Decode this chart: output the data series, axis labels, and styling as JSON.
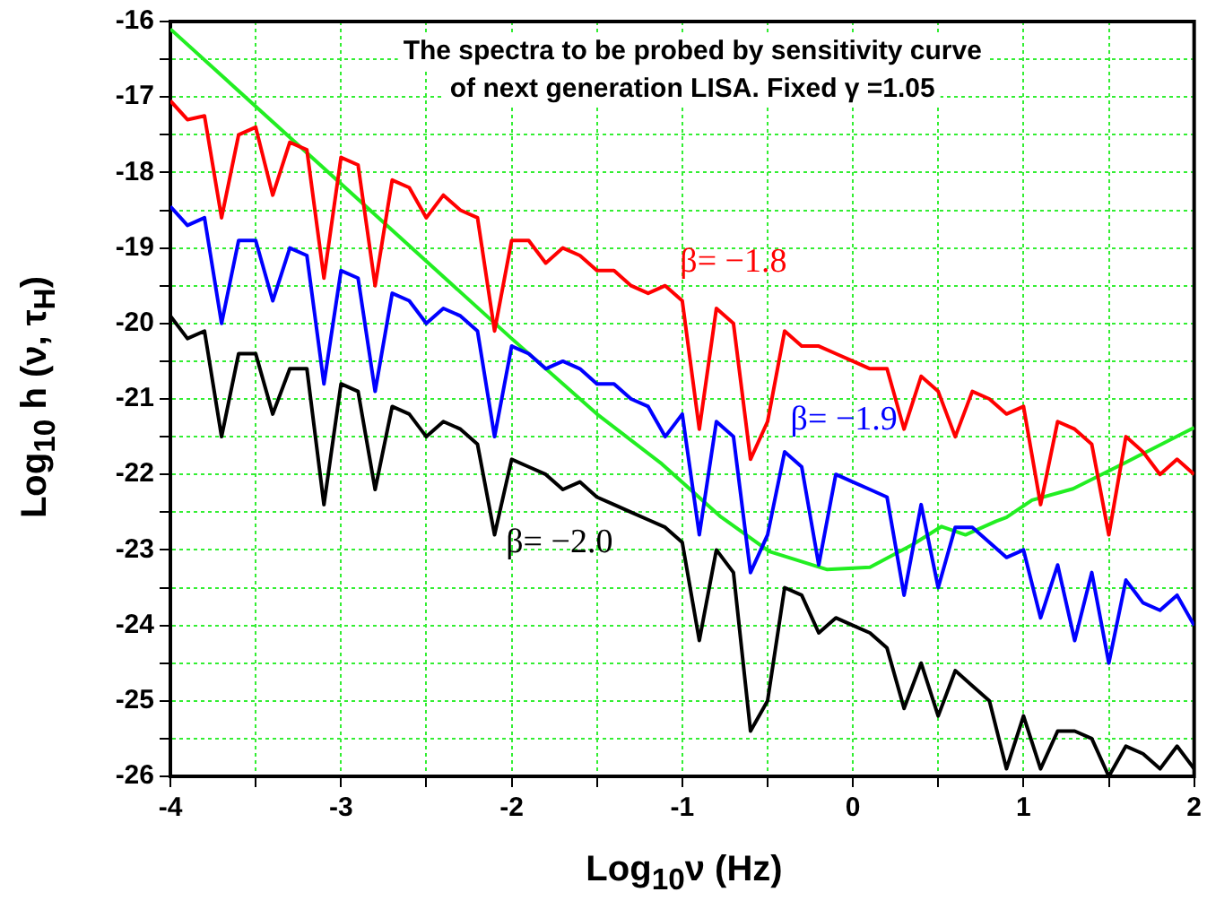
{
  "chart_data": {
    "type": "line",
    "title": "The spectra to be probed by sensitivity curve\nof next generation LISA. Fixed γ =1.05",
    "xlabel": "Log$_{10}$ν (Hz)",
    "ylabel": "Log$_{10}$ h (ν, τ$_{H}$)",
    "x": [
      -4.0,
      -3.9,
      -3.8,
      -3.7,
      -3.6,
      -3.5,
      -3.4,
      -3.3,
      -3.2,
      -3.1,
      -3.0,
      -2.9,
      -2.8,
      -2.7,
      -2.6,
      -2.5,
      -2.4,
      -2.3,
      -2.2,
      -2.1,
      -2.0,
      -1.9,
      -1.8,
      -1.7,
      -1.6,
      -1.5,
      -1.4,
      -1.3,
      -1.2,
      -1.1,
      -1.0,
      -0.9,
      -0.8,
      -0.7,
      -0.6,
      -0.5,
      -0.4,
      -0.3,
      -0.2,
      -0.1,
      0.0,
      0.1,
      0.2,
      0.3,
      0.4,
      0.5,
      0.6,
      0.7,
      0.8,
      0.9,
      1.0,
      1.1,
      1.2,
      1.3,
      1.4,
      1.5,
      1.6,
      1.7,
      1.8,
      1.9,
      2.0
    ],
    "series": [
      {
        "name": "β= −1.8",
        "color": "#ff0000",
        "values": [
          -17.05,
          -17.3,
          -17.25,
          -18.6,
          -17.5,
          -17.4,
          -18.3,
          -17.6,
          -17.7,
          -19.4,
          -17.8,
          -17.9,
          -19.5,
          -18.1,
          -18.2,
          -18.6,
          -18.3,
          -18.5,
          -18.6,
          -20.1,
          -18.9,
          -18.9,
          -19.2,
          -19.0,
          -19.1,
          -19.3,
          -19.3,
          -19.5,
          -19.6,
          -19.5,
          -19.7,
          -21.4,
          -19.8,
          -20.0,
          -21.8,
          -21.3,
          -20.1,
          -20.3,
          -20.3,
          -20.4,
          -20.5,
          -20.6,
          -20.6,
          -21.4,
          -20.7,
          -20.9,
          -21.5,
          -20.9,
          -21.0,
          -21.2,
          -21.1,
          -22.4,
          -21.3,
          -21.4,
          -21.6,
          -22.8,
          -21.5,
          -21.7,
          -22.0,
          -21.8,
          -22.0
        ]
      },
      {
        "name": "β= −1.9",
        "color": "#0000ff",
        "values": [
          -18.45,
          -18.7,
          -18.6,
          -20.0,
          -18.9,
          -18.9,
          -19.7,
          -19.0,
          -19.1,
          -20.8,
          -19.3,
          -19.4,
          -20.9,
          -19.6,
          -19.7,
          -20.0,
          -19.8,
          -19.9,
          -20.1,
          -21.5,
          -20.3,
          -20.4,
          -20.6,
          -20.5,
          -20.6,
          -20.8,
          -20.8,
          -21.0,
          -21.1,
          -21.5,
          -21.2,
          -22.8,
          -21.3,
          -21.5,
          -23.3,
          -22.8,
          -21.7,
          -21.9,
          -23.2,
          -22.0,
          -22.1,
          -22.2,
          -22.3,
          -23.6,
          -22.4,
          -23.5,
          -22.7,
          -22.7,
          -22.9,
          -23.1,
          -23.0,
          -23.9,
          -23.2,
          -24.2,
          -23.3,
          -24.5,
          -23.4,
          -23.7,
          -23.8,
          -23.6,
          -24.0
        ]
      },
      {
        "name": "β= −2.0",
        "color": "#000000",
        "values": [
          -19.9,
          -20.2,
          -20.1,
          -21.5,
          -20.4,
          -20.4,
          -21.2,
          -20.6,
          -20.6,
          -22.4,
          -20.8,
          -20.9,
          -22.2,
          -21.1,
          -21.2,
          -21.5,
          -21.3,
          -21.4,
          -21.6,
          -22.8,
          -21.8,
          -21.9,
          -22.0,
          -22.2,
          -22.1,
          -22.3,
          -22.4,
          -22.5,
          -22.6,
          -22.7,
          -22.9,
          -24.2,
          -23.0,
          -23.3,
          -25.4,
          -25.0,
          -23.5,
          -23.6,
          -24.1,
          -23.9,
          -24.0,
          -24.1,
          -24.3,
          -25.1,
          -24.5,
          -25.2,
          -24.6,
          -24.8,
          -25.0,
          -25.9,
          -25.2,
          -25.9,
          -25.4,
          -25.4,
          -25.5,
          -26.0,
          -25.6,
          -25.7,
          -25.9,
          -25.6,
          -25.9
        ]
      },
      {
        "color": "#22ee22",
        "x": [
          -4.0,
          -3.0,
          -2.0,
          -1.5,
          -1.12,
          -0.78,
          -0.49,
          -0.15,
          0.1,
          0.35,
          0.52,
          0.66,
          0.84,
          0.9,
          1.05,
          1.29,
          1.6,
          2.0
        ],
        "values": [
          -16.1,
          -18.15,
          -20.2,
          -21.2,
          -21.86,
          -22.55,
          -23.02,
          -23.26,
          -23.23,
          -22.93,
          -22.69,
          -22.8,
          -22.62,
          -22.57,
          -22.34,
          -22.19,
          -21.84,
          -21.38
        ]
      }
    ],
    "xlim": [
      -4,
      2
    ],
    "xticks": [
      -4,
      {
        "value": -3.5,
        "label": null
      },
      -3,
      {
        "value": -2.5,
        "label": null
      },
      -2,
      {
        "value": -1.5,
        "label": null
      },
      -1,
      {
        "value": -0.5,
        "label": null
      },
      0,
      {
        "value": 0.5,
        "label": null
      },
      1,
      {
        "value": 1.5,
        "label": null
      },
      2
    ],
    "ylim": [
      -26,
      -16
    ],
    "yticks": [
      -16,
      {
        "value": -16.5,
        "label": null
      },
      -17,
      {
        "value": -17.5,
        "label": null
      },
      -18,
      {
        "value": -18.5,
        "label": null
      },
      -19,
      {
        "value": -19.5,
        "label": null
      },
      -20,
      {
        "value": -20.5,
        "label": null
      },
      -21,
      {
        "value": -21.5,
        "label": null
      },
      -22,
      {
        "value": -22.5,
        "label": null
      },
      -23,
      {
        "value": -23.5,
        "label": null
      },
      -24,
      {
        "value": -24.5,
        "label": null
      },
      -25,
      {
        "value": -25.5,
        "label": null
      },
      -26
    ],
    "grid": true
  }
}
